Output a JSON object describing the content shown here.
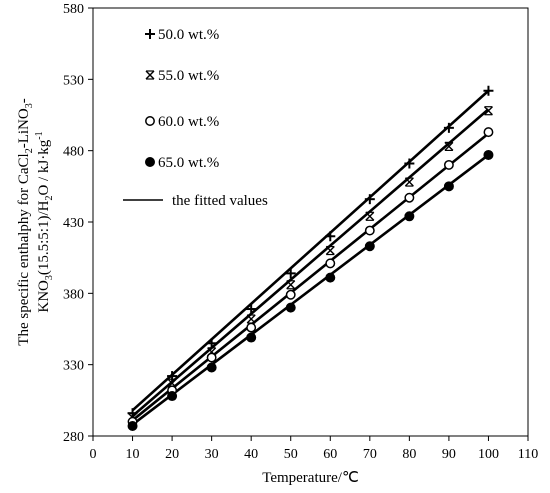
{
  "chart_data": {
    "type": "scatter",
    "xlabel": "Temperature/℃",
    "ylabel_line1": "The specific enthalphy for CaCl",
    "ylabel_line1_sub": "2",
    "ylabel_line1_rest": "-LiNO",
    "ylabel_line1_sub2": "3",
    "ylabel_line1_end": "-",
    "ylabel_line2_a": "KNO",
    "ylabel_line2_sub": "3",
    "ylabel_line2_b": "(15.5:5:1)/H",
    "ylabel_line2_sub2": "2",
    "ylabel_line2_c": "O  / kJ·kg",
    "ylabel_line2_sup": "-1",
    "xlim": [
      0,
      110
    ],
    "ylim": [
      280,
      580
    ],
    "xticks": [
      "0",
      "10",
      "20",
      "30",
      "40",
      "50",
      "60",
      "70",
      "80",
      "90",
      "100",
      "110"
    ],
    "yticks": [
      "280",
      "330",
      "380",
      "430",
      "480",
      "530",
      "580"
    ],
    "x": [
      10,
      20,
      30,
      40,
      50,
      60,
      70,
      80,
      90,
      100
    ],
    "series": [
      {
        "name": "50.0 wt.%",
        "marker": "plus",
        "values": [
          296,
          322,
          345,
          369,
          394,
          420,
          446,
          471,
          496,
          522
        ],
        "fit": [
          298,
          522
        ]
      },
      {
        "name": "55.0 wt.%",
        "marker": "cross",
        "values": [
          293,
          317,
          339,
          362,
          386,
          410,
          434,
          458,
          483,
          508
        ],
        "fit": [
          294,
          509
        ]
      },
      {
        "name": "60.0 wt.%",
        "marker": "open-circle",
        "values": [
          290,
          312,
          335,
          356,
          379,
          401,
          424,
          447,
          470,
          493
        ],
        "fit": [
          291,
          492
        ]
      },
      {
        "name": "65.0 wt.%",
        "marker": "filled-circle",
        "values": [
          287,
          308,
          328,
          349,
          370,
          391,
          413,
          434,
          455,
          477
        ],
        "fit": [
          288,
          477
        ]
      }
    ],
    "fit_label": "the fitted values",
    "grid": false,
    "legend_position": "top-left"
  }
}
